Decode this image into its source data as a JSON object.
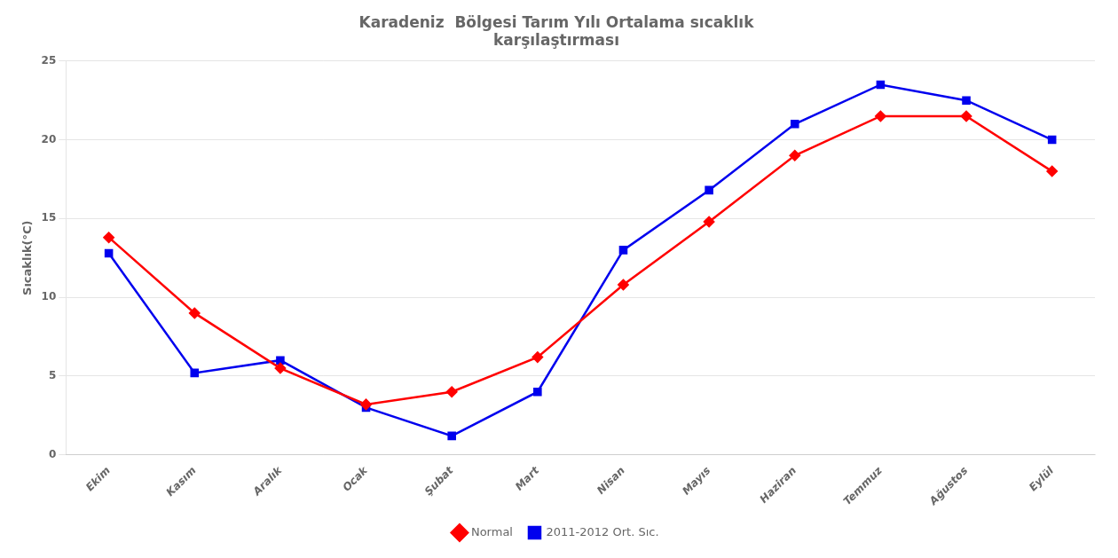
{
  "chart_data": {
    "type": "line",
    "title": "Karadeniz  Bölgesi Tarım Yılı Ortalama sıcaklık\nkarşılaştırması",
    "ylabel": "Sıcaklık(°C)",
    "categories": [
      "Ekim",
      "Kasım",
      "Aralık",
      "Ocak",
      "Şubat",
      "Mart",
      "Nisan",
      "Mayıs",
      "Haziran",
      "Temmuz",
      "Ağustos",
      "Eylül"
    ],
    "series": [
      {
        "name": "Normal",
        "color": "#FF0000",
        "marker": "diamond",
        "values": [
          13.8,
          9.0,
          5.5,
          3.2,
          4.0,
          6.2,
          10.8,
          14.8,
          19.0,
          21.5,
          21.5,
          18.0
        ]
      },
      {
        "name": "2011-2012 Ort. Sıc.",
        "color": "#0000EE",
        "marker": "square",
        "values": [
          12.8,
          5.2,
          6.0,
          3.0,
          1.2,
          4.0,
          13.0,
          16.8,
          21.0,
          23.5,
          22.5,
          20.0
        ]
      }
    ],
    "ylim": [
      0,
      25
    ],
    "yticks": [
      0,
      5,
      10,
      15,
      20,
      25
    ],
    "grid": true,
    "legend": "bottom"
  }
}
